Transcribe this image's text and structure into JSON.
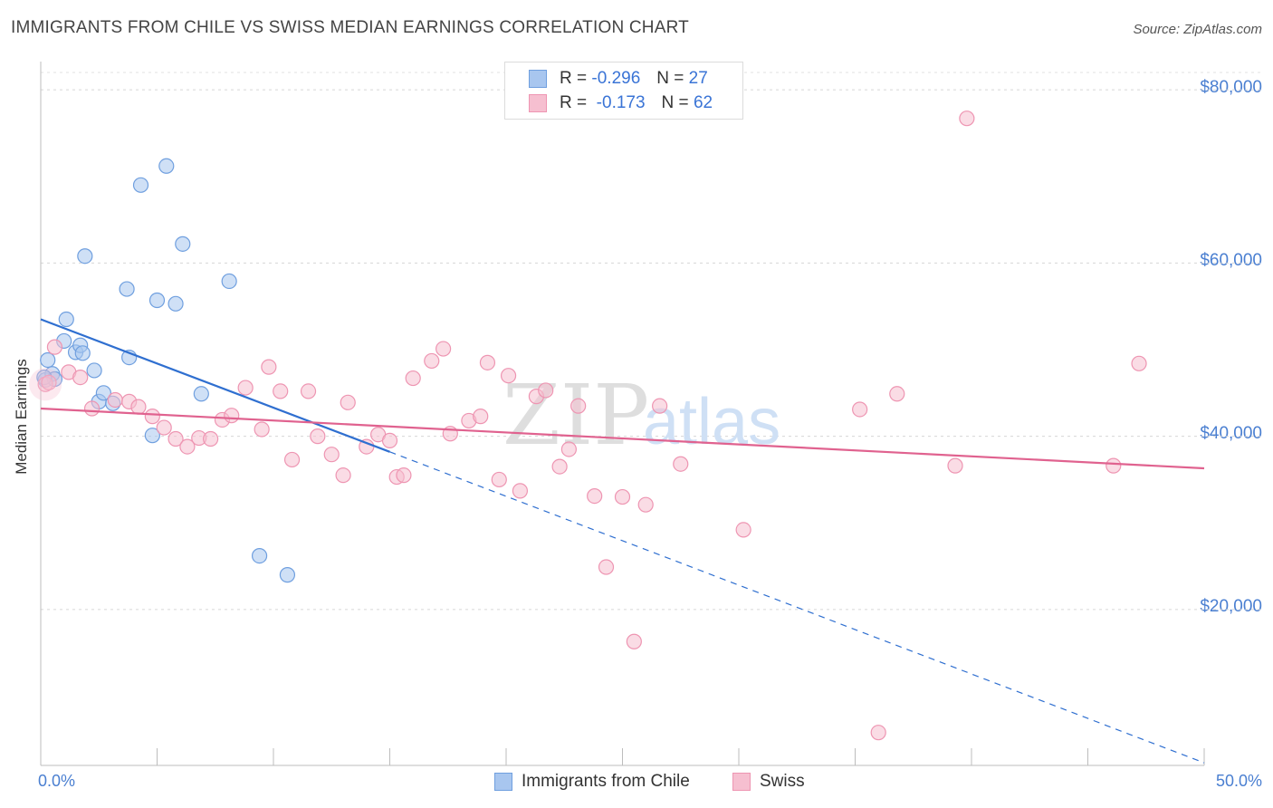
{
  "chart_data": {
    "type": "scatter",
    "title": "IMMIGRANTS FROM CHILE VS SWISS MEDIAN EARNINGS CORRELATION CHART",
    "source": "Source: ZipAtlas.com",
    "ylabel": "Median Earnings",
    "xlabel": "",
    "xlim": [
      0,
      50
    ],
    "ylim": [
      2000,
      82000
    ],
    "y_ticks": [
      {
        "value": 20000,
        "label": "$20,000"
      },
      {
        "value": 40000,
        "label": "$40,000"
      },
      {
        "value": 60000,
        "label": "$60,000"
      },
      {
        "value": 80000,
        "label": "$80,000"
      }
    ],
    "x_ticks": [
      {
        "value": 0,
        "label": "0.0%"
      },
      {
        "value": 50,
        "label": "50.0%"
      }
    ],
    "watermark": {
      "zip": "ZIP",
      "atlas": "atlas"
    },
    "legend": {
      "r_label": "R =",
      "n_label": "N =",
      "entries": [
        {
          "r": "-0.296",
          "n": "27"
        },
        {
          "r": "-0.173",
          "n": "62"
        }
      ]
    },
    "series": [
      {
        "name": "Immigrants from Chile",
        "color": "#a8c6ef",
        "stroke": "#6f9fdf",
        "trend_color": "#2f6fd0",
        "trend": {
          "x0": 0,
          "y0": 53500,
          "x1": 15,
          "y1": 38200,
          "x_end": 50,
          "y_end": 2300
        },
        "points": [
          [
            0.2,
            46500
          ],
          [
            0.3,
            48800
          ],
          [
            0.5,
            47200
          ],
          [
            0.6,
            46600
          ],
          [
            1.0,
            51000
          ],
          [
            1.1,
            53500
          ],
          [
            1.5,
            49700
          ],
          [
            1.7,
            50500
          ],
          [
            1.8,
            49600
          ],
          [
            1.9,
            60800
          ],
          [
            2.3,
            47600
          ],
          [
            2.5,
            44000
          ],
          [
            2.7,
            45000
          ],
          [
            3.1,
            43800
          ],
          [
            3.7,
            57000
          ],
          [
            3.8,
            49100
          ],
          [
            4.3,
            69000
          ],
          [
            4.8,
            40100
          ],
          [
            5.0,
            55700
          ],
          [
            5.4,
            71200
          ],
          [
            5.8,
            55300
          ],
          [
            6.1,
            62200
          ],
          [
            6.9,
            44900
          ],
          [
            8.1,
            57900
          ],
          [
            9.4,
            26200
          ],
          [
            10.6,
            24000
          ],
          [
            0.15,
            46800
          ]
        ]
      },
      {
        "name": "Swiss",
        "color": "#f6bfd0",
        "stroke": "#ee95b2",
        "trend_color": "#e0628f",
        "trend": {
          "x0": 0,
          "y0": 43200,
          "x1": 50,
          "y1": 36300
        },
        "points": [
          [
            0.2,
            46000
          ],
          [
            0.6,
            50300
          ],
          [
            1.2,
            47400
          ],
          [
            1.7,
            46800
          ],
          [
            2.2,
            43200
          ],
          [
            3.2,
            44200
          ],
          [
            3.8,
            44000
          ],
          [
            4.2,
            43400
          ],
          [
            4.8,
            42300
          ],
          [
            5.3,
            41000
          ],
          [
            5.8,
            39700
          ],
          [
            6.3,
            38800
          ],
          [
            6.8,
            39800
          ],
          [
            7.3,
            39700
          ],
          [
            7.8,
            41900
          ],
          [
            8.2,
            42400
          ],
          [
            8.8,
            45600
          ],
          [
            9.5,
            40800
          ],
          [
            9.8,
            48000
          ],
          [
            10.3,
            45200
          ],
          [
            10.8,
            37300
          ],
          [
            11.5,
            45200
          ],
          [
            11.9,
            40000
          ],
          [
            12.5,
            37900
          ],
          [
            13.0,
            35500
          ],
          [
            13.2,
            43900
          ],
          [
            14.0,
            38800
          ],
          [
            14.5,
            40200
          ],
          [
            15.0,
            39500
          ],
          [
            15.3,
            35300
          ],
          [
            15.6,
            35500
          ],
          [
            16.0,
            46700
          ],
          [
            16.8,
            48700
          ],
          [
            17.3,
            50100
          ],
          [
            17.6,
            40300
          ],
          [
            18.4,
            41800
          ],
          [
            18.9,
            42300
          ],
          [
            19.2,
            48500
          ],
          [
            19.7,
            35000
          ],
          [
            20.1,
            47000
          ],
          [
            20.6,
            33700
          ],
          [
            21.3,
            44600
          ],
          [
            21.7,
            45300
          ],
          [
            22.3,
            36500
          ],
          [
            22.7,
            38500
          ],
          [
            23.1,
            43500
          ],
          [
            23.8,
            33100
          ],
          [
            24.3,
            24900
          ],
          [
            25.0,
            33000
          ],
          [
            25.5,
            16300
          ],
          [
            26.0,
            32100
          ],
          [
            26.6,
            43500
          ],
          [
            27.5,
            36800
          ],
          [
            30.2,
            29200
          ],
          [
            35.2,
            43100
          ],
          [
            36.0,
            5800
          ],
          [
            36.8,
            44900
          ],
          [
            39.3,
            36600
          ],
          [
            39.8,
            76700
          ],
          [
            46.1,
            36600
          ],
          [
            47.2,
            48400
          ],
          [
            0.35,
            46200
          ]
        ]
      }
    ]
  }
}
